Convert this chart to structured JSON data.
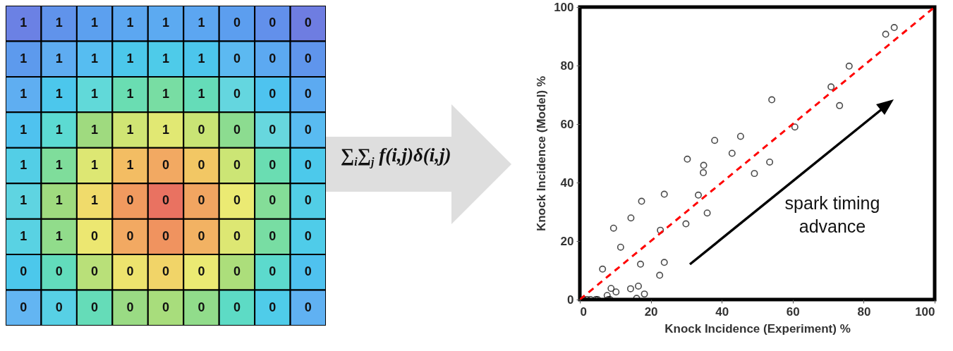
{
  "chart_data": [
    {
      "type": "heatmap",
      "categories": [
        null,
        null,
        null,
        null,
        null,
        null,
        null,
        null,
        null
      ],
      "y_categories": [
        null,
        null,
        null,
        null,
        null,
        null,
        null,
        null,
        null
      ],
      "cells": [
        [
          1,
          1,
          1,
          1,
          1,
          1,
          0,
          0,
          0
        ],
        [
          1,
          1,
          1,
          1,
          1,
          1,
          0,
          0,
          0
        ],
        [
          1,
          1,
          1,
          1,
          1,
          1,
          0,
          0,
          0
        ],
        [
          1,
          1,
          1,
          1,
          1,
          0,
          0,
          0,
          0
        ],
        [
          1,
          1,
          1,
          1,
          0,
          0,
          0,
          0,
          0
        ],
        [
          1,
          1,
          1,
          0,
          0,
          0,
          0,
          0,
          0
        ],
        [
          1,
          1,
          0,
          0,
          0,
          0,
          0,
          0,
          0
        ],
        [
          0,
          0,
          0,
          0,
          0,
          0,
          0,
          0,
          0
        ],
        [
          0,
          0,
          0,
          0,
          0,
          0,
          0,
          0,
          0
        ]
      ],
      "data_labels": true,
      "annotations": [
        "∑$_{i}$∑$_{j}$ f(i,j)δ(i,j)"
      ]
    },
    {
      "type": "scatter",
      "xlabel": "Knock Incidence (Experiment) %",
      "ylabel": "Knock Incidence (Model) %",
      "xlim": [
        0,
        100
      ],
      "ylim": [
        0,
        100
      ],
      "xticks": [
        0,
        20,
        40,
        60,
        80,
        100
      ],
      "yticks": [
        0,
        20,
        40,
        60,
        80,
        100
      ],
      "marker": "circle",
      "series": [
        {
          "type": "scatter",
          "color": "#000000",
          "x": [
            1,
            2,
            3,
            4.5,
            5,
            8,
            8.5,
            16,
            7.7,
            8.8,
            10.2,
            14.3,
            16.5,
            18.2,
            6.4,
            22.5,
            17.1,
            23.8,
            11.5,
            9.5,
            22.7,
            29.9,
            14.4,
            35.9,
            17.4,
            33.4,
            23.8,
            34.8,
            49.2,
            34.9,
            30.3,
            42.9,
            38,
            45.3,
            53.5,
            54.1,
            60.6,
            70.8,
            73.2,
            75.9,
            86.2,
            88.6
          ],
          "values": [
            0,
            0,
            0,
            0,
            0,
            0,
            0,
            0.4,
            1.4,
            3.8,
            2.6,
            3.7,
            4.6,
            1.9,
            10.4,
            8.3,
            12.1,
            12.7,
            17.9,
            24.4,
            23.7,
            25.9,
            27.9,
            29.6,
            33.6,
            35.7,
            36,
            43.4,
            43.1,
            45.9,
            48,
            50,
            54.4,
            55.8,
            47,
            68.3,
            59,
            72.7,
            66.3,
            79.8,
            90.7,
            93
          ]
        },
        {
          "type": "line",
          "color": "#ff0000",
          "line_style": "dashed",
          "marker": "none",
          "x": [
            0,
            100
          ],
          "values": [
            0,
            100
          ]
        }
      ],
      "annotations": [
        "spark timing advance"
      ]
    }
  ]
}
